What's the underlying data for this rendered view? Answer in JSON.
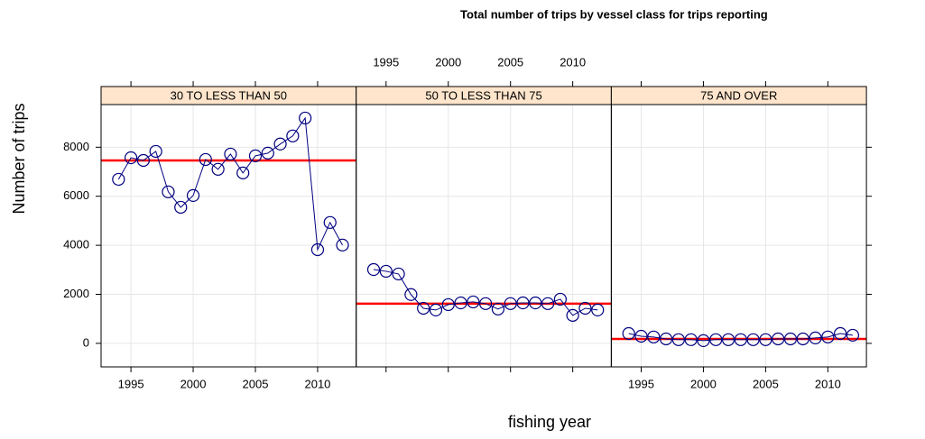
{
  "chart_data": {
    "type": "line",
    "title": "Total number of trips by vessel class for trips reporting",
    "xlabel": "fishing year",
    "ylabel": "Number of trips",
    "x": [
      1994,
      1995,
      1996,
      1997,
      1998,
      1999,
      2000,
      2001,
      2002,
      2003,
      2004,
      2005,
      2006,
      2007,
      2008,
      2009,
      2010,
      2011,
      2012
    ],
    "series": [
      {
        "name": "30 TO LESS THAN 50",
        "color": "#000080",
        "mean": 7460,
        "values": [
          6690,
          7570,
          7460,
          7830,
          6180,
          5550,
          6030,
          7500,
          7100,
          7720,
          6950,
          7650,
          7760,
          8130,
          8460,
          9190,
          3820,
          4930,
          4010
        ]
      },
      {
        "name": "50 TO LESS THAN 75",
        "color": "#000080",
        "mean": 1620,
        "values": [
          3010,
          2940,
          2830,
          1990,
          1430,
          1360,
          1580,
          1650,
          1690,
          1620,
          1400,
          1620,
          1650,
          1650,
          1620,
          1800,
          1140,
          1430,
          1360
        ]
      },
      {
        "name": "75 AND OVER",
        "color": "#000080",
        "mean": 180,
        "values": [
          400,
          290,
          260,
          180,
          150,
          150,
          110,
          150,
          150,
          150,
          150,
          150,
          180,
          180,
          180,
          220,
          260,
          400,
          330
        ]
      }
    ],
    "mean_color": "#ff0000",
    "strip_color": "#ffe5cc",
    "grid": true,
    "xlim": [
      1992.6,
      2013.1
    ],
    "xticks": [
      1995,
      2000,
      2005,
      2010
    ],
    "ylim": [
      -960,
      9740
    ],
    "yticks": [
      0,
      2000,
      4000,
      6000,
      8000
    ]
  }
}
